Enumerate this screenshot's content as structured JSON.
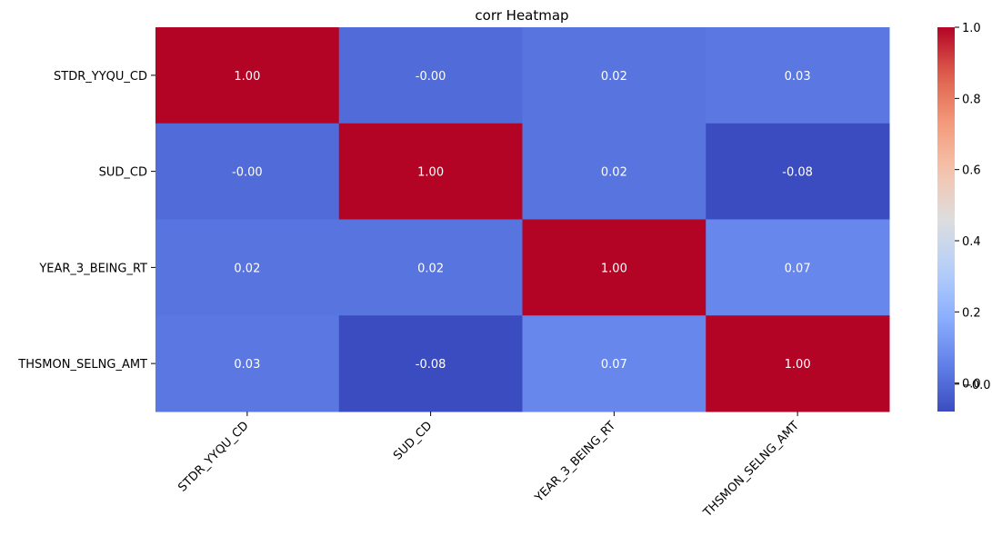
{
  "chart_data": {
    "type": "heatmap",
    "title": "corr Heatmap",
    "x_labels": [
      "STDR_YYQU_CD",
      "SUD_CD",
      "YEAR_3_BEING_RT",
      "THSMON_SELNG_AMT"
    ],
    "y_labels": [
      "STDR_YYQU_CD",
      "SUD_CD",
      "YEAR_3_BEING_RT",
      "THSMON_SELNG_AMT"
    ],
    "values": [
      [
        1.0,
        -0.003,
        0.02,
        0.03
      ],
      [
        -0.003,
        1.0,
        0.02,
        -0.08
      ],
      [
        0.02,
        0.02,
        1.0,
        0.07
      ],
      [
        0.03,
        -0.08,
        0.07,
        1.0
      ]
    ],
    "annotations": [
      [
        "1.00",
        "-0.00",
        "0.02",
        "0.03"
      ],
      [
        "-0.00",
        "1.00",
        "0.02",
        "-0.08"
      ],
      [
        "0.02",
        "0.02",
        "1.00",
        "0.07"
      ],
      [
        "0.03",
        "-0.08",
        "0.07",
        "1.00"
      ]
    ],
    "colormap": "coolwarm",
    "colorbar": {
      "vmin": -0.08,
      "vmax": 1.0,
      "ticks": [
        0.0,
        0.2,
        0.4,
        0.6,
        0.8,
        1.0
      ],
      "tick_labels": [
        "0.0",
        "0.2",
        "0.4",
        "0.6",
        "0.8",
        "1.0"
      ],
      "extra_tick_labels": [
        "−0.0"
      ],
      "extra_ticks": [
        -0.003
      ]
    },
    "grid": false,
    "legend": "colorbar-right"
  }
}
